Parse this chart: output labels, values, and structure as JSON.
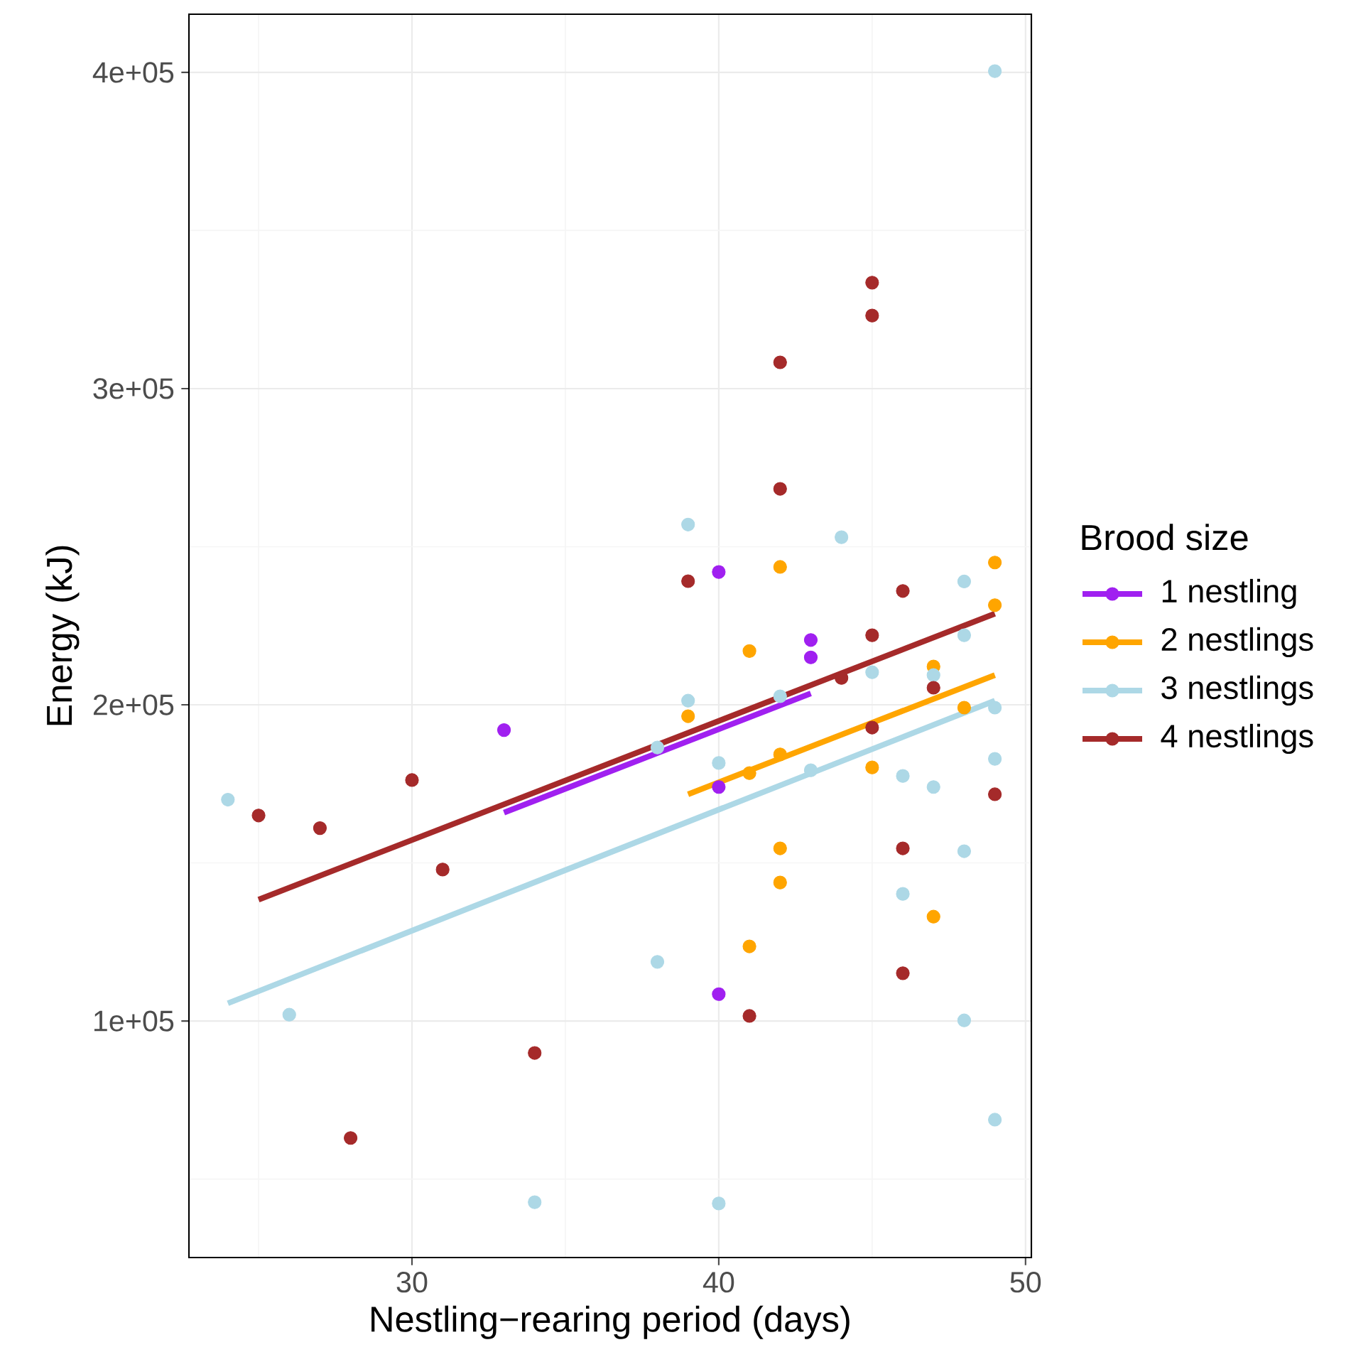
{
  "chart_data": {
    "type": "scatter",
    "xlabel": "Nestling−rearing period (days)",
    "ylabel": "Energy (kJ)",
    "legend_title": "Brood size",
    "legend": "right",
    "grid": true,
    "xlim": [
      22.73,
      50.19
    ],
    "ylim": [
      25200,
      418400
    ],
    "xticks": [
      30,
      40,
      50
    ],
    "yticks": [
      {
        "value": 100000,
        "label": "1e+05"
      },
      {
        "value": 200000,
        "label": "2e+05"
      },
      {
        "value": 300000,
        "label": "3e+05"
      },
      {
        "value": 400000,
        "label": "4e+05"
      }
    ],
    "series": [
      {
        "name": "1 nestling",
        "marker": "circle",
        "color": "#a020f0",
        "x": [
          33,
          40,
          43,
          43,
          40,
          40
        ],
        "values": [
          192000,
          242000,
          220500,
          215000,
          174000,
          108500
        ]
      },
      {
        "name": "2 nestlings",
        "marker": "circle",
        "color": "#ffa500",
        "x": [
          42,
          49,
          49,
          41,
          39,
          42,
          41,
          47,
          48,
          45,
          42,
          42,
          47,
          41
        ],
        "values": [
          243600,
          245000,
          231500,
          217000,
          196400,
          184300,
          178400,
          212100,
          199100,
          180200,
          154600,
          143800,
          133000,
          123600
        ]
      },
      {
        "name": "3 nestlings",
        "marker": "circle",
        "color": "#add8e6",
        "x": [
          39,
          44,
          48,
          48,
          49,
          24,
          26,
          34,
          40,
          38,
          48,
          49,
          39,
          38,
          40,
          42,
          43,
          45,
          47,
          49,
          49,
          46,
          47,
          48,
          46
        ],
        "values": [
          257000,
          253000,
          239000,
          222000,
          400400,
          170000,
          102000,
          42700,
          42300,
          118700,
          100200,
          68800,
          201300,
          186500,
          181600,
          202700,
          179300,
          210300,
          209400,
          199100,
          182900,
          177500,
          174000,
          153700,
          140200
        ]
      },
      {
        "name": "4 nestlings",
        "marker": "circle",
        "color": "#a52a2a",
        "x": [
          25,
          27,
          30,
          31,
          28,
          34,
          41,
          45,
          45,
          42,
          42,
          39,
          46,
          45,
          44,
          47,
          45,
          49,
          46,
          46
        ],
        "values": [
          165000,
          161000,
          176200,
          147900,
          63000,
          89900,
          101600,
          333500,
          323100,
          308300,
          268300,
          239100,
          236000,
          222000,
          208500,
          205400,
          192800,
          171700,
          154600,
          115100
        ]
      },
      {
        "type": "line",
        "marker": "none",
        "color": "#a020f0",
        "x": [
          33,
          43
        ],
        "values": [
          165900,
          203600
        ]
      },
      {
        "type": "line",
        "marker": "none",
        "color": "#ffa500",
        "x": [
          39,
          49
        ],
        "values": [
          171700,
          209400
        ]
      },
      {
        "type": "line",
        "marker": "none",
        "color": "#add8e6",
        "x": [
          24,
          49
        ],
        "values": [
          105600,
          201300
        ]
      },
      {
        "type": "line",
        "marker": "none",
        "color": "#a52a2a",
        "x": [
          25,
          49
        ],
        "values": [
          138400,
          228800
        ]
      }
    ]
  }
}
